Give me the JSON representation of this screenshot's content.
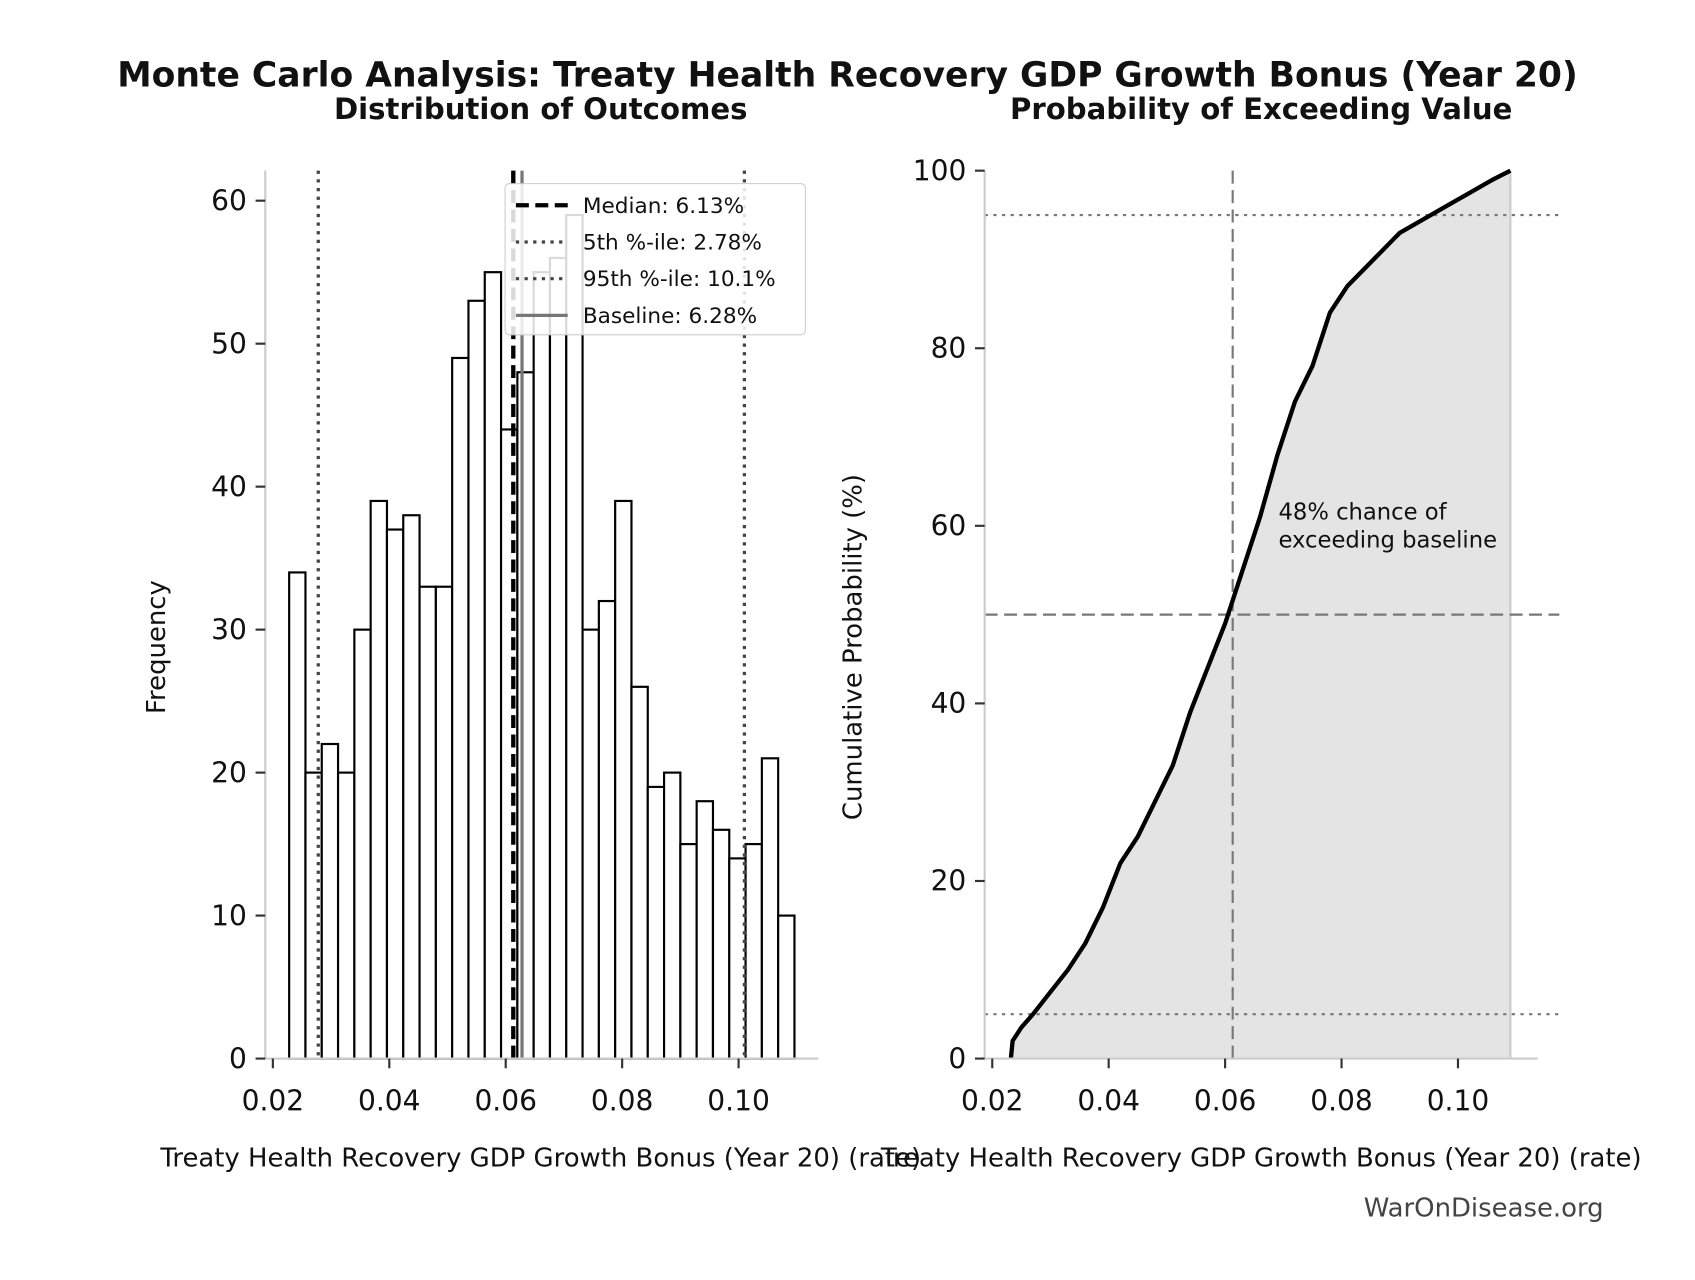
{
  "title": "Monte Carlo Analysis: Treaty Health Recovery GDP Growth Bonus (Year 20)",
  "watermark": "WarOnDisease.org",
  "chart_data": [
    {
      "type": "histogram",
      "title": "Distribution of Outcomes",
      "x_label": "Treaty Health Recovery GDP Growth Bonus (Year 20) (rate)",
      "y_label": "Frequency",
      "bins": [
        0.0228,
        0.0256,
        0.0284,
        0.0312,
        0.034,
        0.0368,
        0.0396,
        0.0424,
        0.0452,
        0.048,
        0.0508,
        0.0536,
        0.0564,
        0.0592,
        0.062,
        0.0648,
        0.0676,
        0.0704,
        0.0732,
        0.076,
        0.0788,
        0.0816,
        0.0844,
        0.0872,
        0.09,
        0.0928,
        0.0956,
        0.0984,
        0.1012,
        0.104,
        0.1068,
        0.1096
      ],
      "values": [
        34,
        20,
        22,
        20,
        30,
        39,
        37,
        38,
        33,
        33,
        49,
        53,
        55,
        44,
        48,
        55,
        56,
        59,
        30,
        32,
        39,
        26,
        19,
        20,
        15,
        18,
        16,
        14,
        15,
        21,
        10
      ],
      "color": "#ffffff",
      "edge_color": "#000000",
      "xlim": [
        0.0187,
        0.1137
      ],
      "ylim": [
        0,
        62.1
      ],
      "xticks": [
        0.02,
        0.04,
        0.06,
        {
          "value": 0.1,
          "label": "0.10"
        },
        0.08
      ],
      "yticks": [
        0,
        10,
        20,
        30,
        40,
        50,
        60
      ],
      "legend": "upper right",
      "vlines": [
        {
          "name": "Median: 6.13%",
          "value": 0.0613,
          "style": "dashed",
          "color": "#000000"
        },
        {
          "name": "5th %-ile: 2.78%",
          "value": 0.0278,
          "style": "dotted",
          "color": "#444444"
        },
        {
          "name": "95th %-ile: 10.1%",
          "value": 0.101,
          "style": "dotted",
          "color": "#444444"
        },
        {
          "name": "Baseline: 6.28%",
          "value": 0.0628,
          "style": "solid",
          "color": "#777777"
        }
      ]
    },
    {
      "type": "line",
      "title": "Probability of Exceeding Value",
      "x_label": "Treaty Health Recovery GDP Growth Bonus (Year 20) (rate)",
      "y_label": "Cumulative Probability (%)",
      "x": [
        0.0232,
        0.0235,
        0.025,
        0.027,
        0.03,
        0.033,
        0.036,
        0.039,
        0.042,
        0.045,
        0.048,
        0.051,
        0.054,
        0.057,
        0.06,
        0.063,
        0.066,
        0.069,
        0.072,
        0.075,
        0.078,
        0.081,
        0.084,
        0.087,
        0.09,
        0.094,
        0.098,
        0.102,
        0.106,
        0.109
      ],
      "y": [
        0,
        2,
        3.5,
        5,
        7.5,
        10,
        13,
        17,
        22,
        25,
        29,
        33,
        39,
        44,
        49,
        55,
        61,
        68,
        74,
        78,
        84,
        87,
        89,
        91,
        93,
        94.5,
        96,
        97.5,
        99,
        100
      ],
      "color": "#000000",
      "fill": "#e4e4e4",
      "xlim": [
        0.0187,
        0.1137
      ],
      "ylim": [
        0,
        100
      ],
      "xticks": [
        0.02,
        0.04,
        0.06,
        0.08,
        {
          "value": 0.1,
          "label": "0.10"
        }
      ],
      "yticks": [
        0,
        20,
        40,
        60,
        80,
        100
      ],
      "hlines": [
        {
          "value": 5,
          "style": "dotted"
        },
        {
          "value": 95,
          "style": "dotted"
        },
        {
          "value": 50,
          "style": "dashed"
        }
      ],
      "vline": {
        "value": 0.0613,
        "style": "dashed"
      },
      "annotation": [
        "48% chance of",
        "exceeding baseline"
      ]
    }
  ]
}
